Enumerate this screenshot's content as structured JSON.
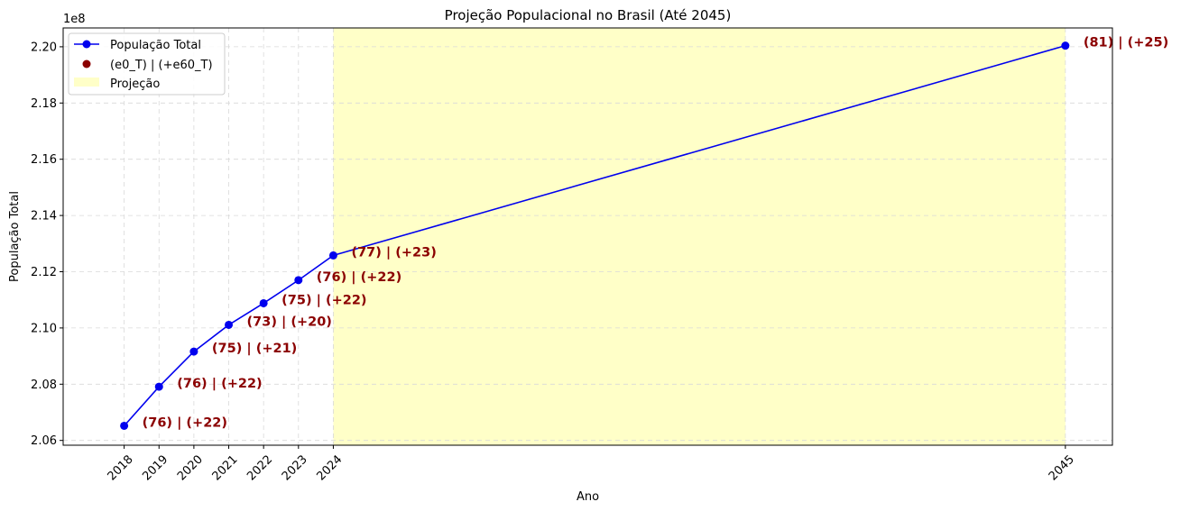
{
  "colors": {
    "line": "#0000ee",
    "annotation": "#8b0000",
    "projection_fill": "#ffffc8",
    "grid": "#d9d9d9"
  },
  "chart_data": {
    "type": "line",
    "title": "Projeção Populacional no Brasil (Até 2045)",
    "xlabel": "Ano",
    "ylabel": "População Total",
    "y_offset_label": "1e8",
    "xlim": [
      2016.25,
      2046.35
    ],
    "ylim": [
      2.0583,
      2.2067
    ],
    "grid": true,
    "legend_position": "top-left",
    "x_ticks": [
      2018,
      2019,
      2020,
      2021,
      2022,
      2023,
      2024,
      2045
    ],
    "y_ticks": [
      2.06,
      2.08,
      2.1,
      2.12,
      2.14,
      2.16,
      2.18,
      2.2
    ],
    "y_tick_labels": [
      "2.06",
      "2.08",
      "2.10",
      "2.12",
      "2.14",
      "2.16",
      "2.18",
      "2.20"
    ],
    "series": [
      {
        "name": "População Total",
        "x": [
          2018,
          2019,
          2020,
          2021,
          2022,
          2023,
          2024,
          2045
        ],
        "y": [
          2.0652,
          2.0791,
          2.0916,
          2.1011,
          2.1088,
          2.117,
          2.1258,
          2.2004
        ]
      }
    ],
    "annotations": [
      "(76) | (+22)",
      "(76) | (+22)",
      "(75) | (+21)",
      "(73) | (+20)",
      "(75) | (+22)",
      "(76) | (+22)",
      "(77) | (+23)",
      "(81) | (+25)"
    ],
    "projection_span": [
      2024,
      2045
    ],
    "legend": {
      "line": "População Total",
      "points": "(e0_T) | (+e60_T)",
      "span": "Projeção"
    }
  }
}
